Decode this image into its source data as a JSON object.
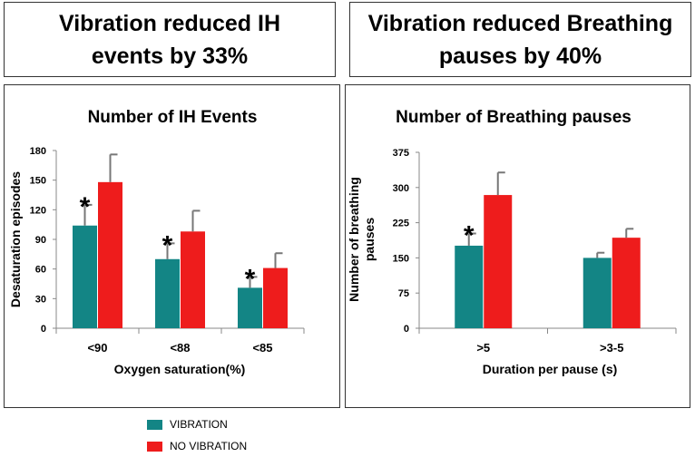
{
  "headlines": {
    "left": {
      "line1": "Vibration reduced IH",
      "line2": "events by 33%"
    },
    "right": {
      "line1": "Vibration reduced Breathing",
      "line2": "pauses by 40%"
    }
  },
  "colors": {
    "vibration": "#138585",
    "no_vibration": "#ee1c1c",
    "error_bar": "#777777"
  },
  "legend": [
    {
      "label": "VIBRATION",
      "color": "#138585"
    },
    {
      "label": "NO VIBRATION",
      "color": "#ee1c1c"
    }
  ],
  "chart_data": [
    {
      "type": "bar",
      "title": "Number of IH Events",
      "xlabel": "Oxygen saturation(%)",
      "ylabel": "Desaturation episodes",
      "categories": [
        "<90",
        "<88",
        "<85"
      ],
      "yticks": [
        0,
        30,
        60,
        90,
        120,
        150,
        180
      ],
      "ylim": [
        0,
        180
      ],
      "series": [
        {
          "name": "VIBRATION",
          "values": [
            104,
            70,
            41
          ],
          "errors": [
            21,
            16,
            11
          ]
        },
        {
          "name": "NO VIBRATION",
          "values": [
            148,
            98,
            61
          ],
          "errors": [
            28,
            21,
            15
          ]
        }
      ],
      "annotations": [
        {
          "text": "*",
          "category": "<90"
        },
        {
          "text": "*",
          "category": "<88"
        },
        {
          "text": "*",
          "category": "<85"
        }
      ]
    },
    {
      "type": "bar",
      "title": "Number of Breathing pauses",
      "xlabel": "Duration per pause (s)",
      "ylabel_lines": [
        "Number of breathing",
        "pauses"
      ],
      "categories": [
        ">5",
        ">3-5"
      ],
      "yticks": [
        0,
        75,
        150,
        225,
        300,
        375
      ],
      "ylim": [
        0,
        375
      ],
      "series": [
        {
          "name": "VIBRATION",
          "values": [
            176,
            150
          ],
          "errors": [
            26,
            11
          ]
        },
        {
          "name": "NO VIBRATION",
          "values": [
            284,
            193
          ],
          "errors": [
            48,
            19
          ]
        }
      ],
      "annotations": [
        {
          "text": "*",
          "category": ">5"
        }
      ]
    }
  ]
}
